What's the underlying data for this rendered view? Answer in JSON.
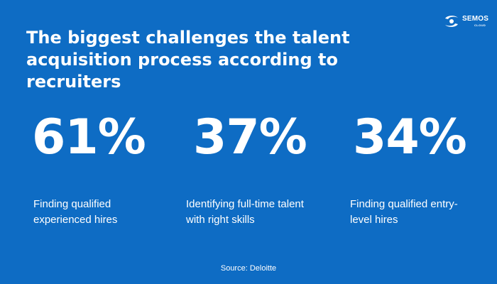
{
  "brand": {
    "name": "SEMOS",
    "sub": "CLOUD",
    "logo_icon": "semos-swirl-icon"
  },
  "title": "The biggest challenges the talent acquisition process according to recruiters",
  "stats": [
    {
      "value": "61%",
      "label": "Finding qualified experienced hires"
    },
    {
      "value": "37%",
      "label": "Identifying full-time talent with right skills"
    },
    {
      "value": "34%",
      "label": "Finding qualified entry-level hires"
    }
  ],
  "source": "Source: Deloitte",
  "colors": {
    "background": "#0e6cc4",
    "text": "#ffffff"
  }
}
